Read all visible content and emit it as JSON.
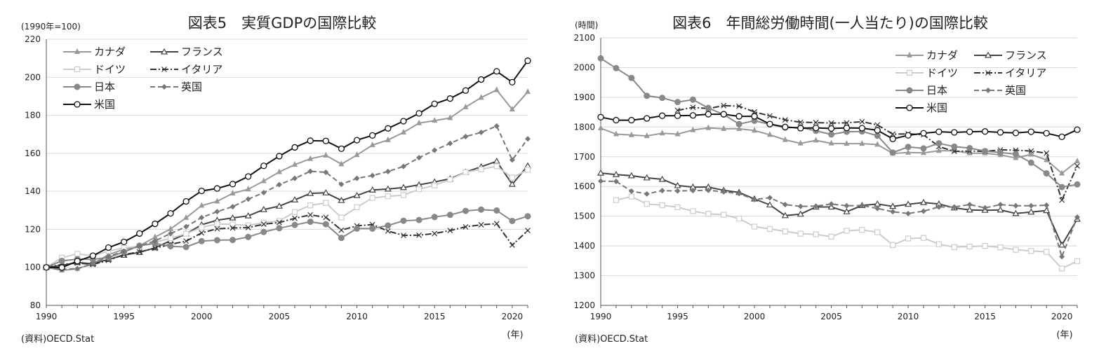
{
  "chart_data": [
    {
      "type": "line",
      "title": "図表5　実質GDPの国際比較",
      "unit_label": "(1990年=100)",
      "source": "(資料)OECD.Stat",
      "xlabel": "(年)",
      "ylim": [
        80,
        220
      ],
      "yticks": [
        80,
        100,
        120,
        140,
        160,
        180,
        200,
        220
      ],
      "xlim": [
        1990,
        2021
      ],
      "xticks": [
        1990,
        1995,
        2000,
        2005,
        2010,
        2015,
        2020
      ],
      "legend_position": "top-left",
      "grid": true,
      "x": [
        1990,
        1991,
        1992,
        1993,
        1994,
        1995,
        1996,
        1997,
        1998,
        1999,
        2000,
        2001,
        2002,
        2003,
        2004,
        2005,
        2006,
        2007,
        2008,
        2009,
        2010,
        2011,
        2012,
        2013,
        2014,
        2015,
        2016,
        2017,
        2018,
        2019,
        2020,
        2021
      ],
      "series": [
        {
          "name": "カナダ",
          "color": "#999999",
          "marker": "triangle-filled",
          "dash": "solid",
          "values": [
            100,
            98.4,
            99.3,
            102.0,
            106.6,
            109.6,
            111.3,
            115.9,
            120.2,
            126.1,
            132.5,
            134.7,
            138.9,
            141.1,
            145.4,
            150.2,
            154.0,
            157.1,
            158.9,
            154.3,
            159.1,
            164.3,
            167.0,
            171.0,
            175.9,
            177.2,
            178.6,
            184.3,
            189.3,
            193.3,
            183.1,
            192.3
          ]
        },
        {
          "name": "フランス",
          "color": "#444444",
          "marker": "triangle-open",
          "dash": "solid",
          "values": [
            100,
            101.0,
            102.6,
            101.9,
            104.2,
            106.4,
            107.9,
            110.3,
            114.0,
            117.6,
            122.4,
            124.8,
            126.0,
            127.1,
            130.4,
            132.2,
            135.5,
            138.9,
            139.2,
            135.2,
            137.8,
            140.7,
            141.2,
            142.0,
            143.4,
            144.9,
            146.6,
            150.1,
            152.9,
            155.8,
            143.7,
            153.4
          ]
        },
        {
          "name": "ドイツ",
          "color": "#cccccc",
          "marker": "square-open",
          "dash": "solid",
          "values": [
            100,
            105.1,
            107.1,
            106.0,
            108.6,
            110.2,
            111.1,
            113.2,
            115.3,
            117.7,
            121.0,
            122.8,
            122.6,
            122.1,
            123.5,
            124.4,
            129.1,
            132.6,
            133.9,
            126.2,
            131.6,
            136.5,
            137.4,
            138.0,
            141.1,
            143.1,
            146.2,
            150.1,
            151.5,
            153.2,
            147.2,
            151.3
          ]
        },
        {
          "name": "イタリア",
          "color": "#333333",
          "marker": "x",
          "dash": "dashdot",
          "values": [
            100,
            101.5,
            102.3,
            101.5,
            103.7,
            106.7,
            108.1,
            110.1,
            112.1,
            113.8,
            118.1,
            120.3,
            120.7,
            120.9,
            122.7,
            123.6,
            125.8,
            127.6,
            126.3,
            119.6,
            121.8,
            122.5,
            119.1,
            116.8,
            116.9,
            117.8,
            119.4,
            121.3,
            122.4,
            123.0,
            111.7,
            119.4
          ]
        },
        {
          "name": "日本",
          "color": "#888888",
          "marker": "circle-filled",
          "dash": "solid",
          "values": [
            100,
            103.4,
            104.3,
            104.2,
            105.2,
            108.1,
            111.4,
            112.6,
            111.1,
            110.7,
            113.8,
            114.3,
            114.4,
            116.0,
            118.6,
            120.6,
            122.3,
            124.0,
            122.7,
            115.5,
            120.4,
            120.4,
            122.0,
            124.5,
            124.9,
            126.5,
            127.6,
            129.7,
            130.4,
            129.9,
            124.4,
            126.9
          ]
        },
        {
          "name": "英国",
          "color": "#777777",
          "marker": "diamond-filled",
          "dash": "dashed",
          "values": [
            100,
            98.9,
            99.3,
            101.8,
            105.7,
            108.4,
            111.2,
            113.9,
            117.8,
            121.4,
            126.2,
            129.3,
            131.9,
            135.9,
            139.3,
            143.5,
            146.8,
            150.5,
            150.0,
            143.7,
            146.8,
            148.3,
            150.4,
            153.1,
            157.7,
            161.6,
            165.2,
            168.8,
            171.0,
            174.3,
            156.5,
            167.6
          ]
        },
        {
          "name": "米国",
          "color": "#111111",
          "marker": "circle-open",
          "dash": "solid",
          "values": [
            100,
            99.9,
            103.3,
            106.1,
            110.4,
            113.4,
            117.8,
            122.9,
            128.4,
            134.7,
            140.2,
            141.5,
            143.8,
            147.8,
            153.4,
            158.5,
            163.1,
            166.6,
            166.5,
            162.4,
            166.9,
            169.4,
            173.1,
            176.9,
            181.0,
            186.0,
            188.8,
            193.0,
            198.8,
            203.1,
            197.4,
            208.7
          ]
        }
      ]
    },
    {
      "type": "line",
      "title": "図表6　年間総労働時間(一人当たり)の国際比較",
      "unit_label": "(時間)",
      "source": "(資料)OECD.Stat",
      "xlabel": "(年)",
      "ylim": [
        1200,
        2100
      ],
      "yticks": [
        1200,
        1300,
        1400,
        1500,
        1600,
        1700,
        1800,
        1900,
        2000,
        2100
      ],
      "xlim": [
        1990,
        2021
      ],
      "xticks": [
        1990,
        1995,
        2000,
        2005,
        2010,
        2015,
        2020
      ],
      "legend_position": "top-right",
      "grid": true,
      "x": [
        1990,
        1991,
        1992,
        1993,
        1994,
        1995,
        1996,
        1997,
        1998,
        1999,
        2000,
        2001,
        2002,
        2003,
        2004,
        2005,
        2006,
        2007,
        2008,
        2009,
        2010,
        2011,
        2012,
        2013,
        2014,
        2015,
        2016,
        2017,
        2018,
        2019,
        2020,
        2021
      ],
      "series": [
        {
          "name": "カナダ",
          "color": "#999999",
          "marker": "triangle-filled",
          "dash": "solid",
          "values": [
            1796,
            1776,
            1773,
            1770,
            1779,
            1776,
            1790,
            1797,
            1794,
            1794,
            1788,
            1774,
            1757,
            1745,
            1755,
            1745,
            1744,
            1744,
            1741,
            1711,
            1714,
            1713,
            1720,
            1720,
            1712,
            1712,
            1706,
            1696,
            1708,
            1689,
            1644,
            1685
          ]
        },
        {
          "name": "フランス",
          "color": "#444444",
          "marker": "triangle-open",
          "dash": "solid",
          "values": [
            1645,
            1640,
            1636,
            1629,
            1624,
            1603,
            1598,
            1598,
            1587,
            1580,
            1558,
            1538,
            1502,
            1507,
            1531,
            1531,
            1515,
            1536,
            1541,
            1533,
            1540,
            1546,
            1541,
            1528,
            1521,
            1520,
            1521,
            1509,
            1514,
            1519,
            1403,
            1490
          ]
        },
        {
          "name": "ドイツ",
          "color": "#cccccc",
          "marker": "square-open",
          "dash": "solid",
          "values": [
            null,
            1554,
            1566,
            1541,
            1537,
            1530,
            1517,
            1508,
            1505,
            1492,
            1465,
            1457,
            1449,
            1441,
            1439,
            1431,
            1451,
            1454,
            1446,
            1403,
            1425,
            1427,
            1406,
            1396,
            1398,
            1400,
            1395,
            1387,
            1383,
            1380,
            1324,
            1349
          ]
        },
        {
          "name": "イタリア",
          "color": "#333333",
          "marker": "x",
          "dash": "dashdot",
          "values": [
            null,
            null,
            null,
            null,
            null,
            1856,
            1866,
            1862,
            1872,
            1870,
            1851,
            1837,
            1824,
            1816,
            1815,
            1813,
            1814,
            1818,
            1807,
            1776,
            1777,
            1774,
            1734,
            1718,
            1719,
            1718,
            1723,
            1722,
            1719,
            1712,
            1554,
            1669
          ]
        },
        {
          "name": "日本",
          "color": "#888888",
          "marker": "circle-filled",
          "dash": "solid",
          "values": [
            2031,
            1998,
            1965,
            1905,
            1898,
            1884,
            1892,
            1864,
            1842,
            1810,
            1821,
            1809,
            1798,
            1799,
            1787,
            1775,
            1784,
            1785,
            1771,
            1714,
            1733,
            1728,
            1745,
            1734,
            1729,
            1719,
            1714,
            1709,
            1680,
            1644,
            1598,
            1607
          ]
        },
        {
          "name": "英国",
          "color": "#777777",
          "marker": "diamond-filled",
          "dash": "dashed",
          "values": [
            1618,
            1617,
            1584,
            1575,
            1586,
            1585,
            1586,
            1587,
            1582,
            1576,
            1556,
            1562,
            1539,
            1533,
            1534,
            1541,
            1535,
            1536,
            1526,
            1515,
            1509,
            1517,
            1531,
            1531,
            1539,
            1528,
            1539,
            1535,
            1535,
            1537,
            1364,
            1497
          ]
        },
        {
          "name": "米国",
          "color": "#111111",
          "marker": "circle-open",
          "dash": "solid",
          "values": [
            1833,
            1823,
            1823,
            1829,
            1838,
            1838,
            1839,
            1843,
            1843,
            1836,
            1836,
            1810,
            1800,
            1796,
            1797,
            1795,
            1797,
            1796,
            1789,
            1760,
            1772,
            1779,
            1784,
            1782,
            1784,
            1785,
            1782,
            1780,
            1784,
            1779,
            1767,
            1791
          ]
        }
      ]
    }
  ]
}
